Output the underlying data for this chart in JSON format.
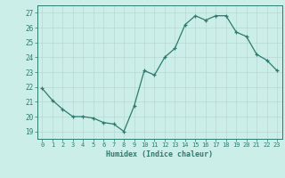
{
  "x": [
    0,
    1,
    2,
    3,
    4,
    5,
    6,
    7,
    8,
    9,
    10,
    11,
    12,
    13,
    14,
    15,
    16,
    17,
    18,
    19,
    20,
    21,
    22,
    23
  ],
  "y": [
    21.9,
    21.1,
    20.5,
    20.0,
    20.0,
    19.9,
    19.6,
    19.5,
    19.0,
    20.7,
    23.1,
    22.8,
    24.0,
    24.6,
    26.2,
    26.8,
    26.5,
    26.8,
    26.8,
    25.7,
    25.4,
    24.2,
    23.8,
    23.1
  ],
  "line_color": "#2d7a6e",
  "marker": "+",
  "marker_color": "#2d7a6e",
  "xlabel": "Humidex (Indice chaleur)",
  "ylabel_ticks": [
    19,
    20,
    21,
    22,
    23,
    24,
    25,
    26,
    27
  ],
  "ylim": [
    18.5,
    27.5
  ],
  "xlim": [
    -0.5,
    23.5
  ],
  "bg_color": "#cceee8",
  "grid_color": "#b8d8d4",
  "axis_color": "#2d7a6e",
  "tick_color": "#2d7a6e",
  "label_color": "#2d7a6e"
}
